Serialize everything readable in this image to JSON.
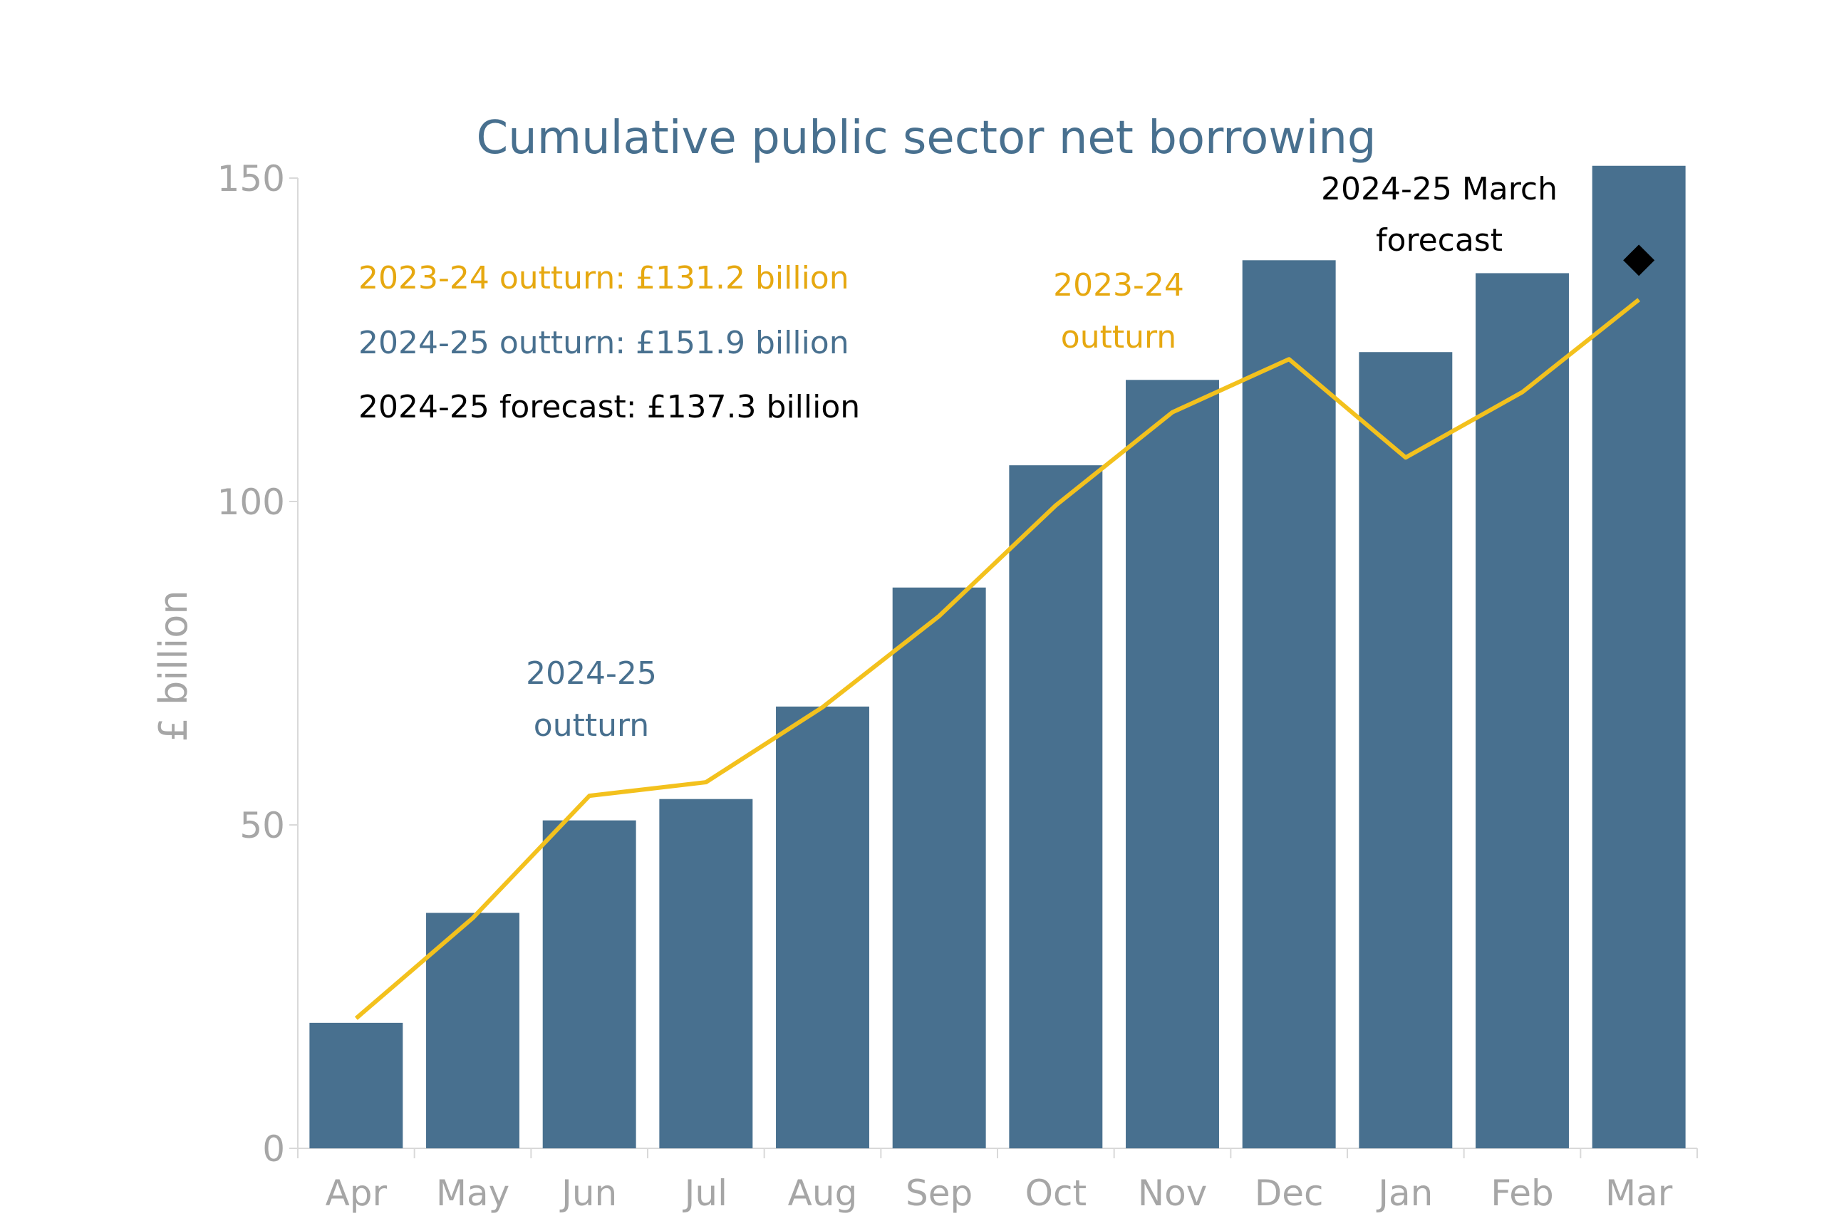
{
  "colors": {
    "bar": "#48708f",
    "line": "#f3c11d",
    "marker": "#000000",
    "title": "#48708f",
    "axis_text": "#a6a6a6",
    "orange_text": "#e6a810",
    "blue_text": "#48708f",
    "black_text": "#000000"
  },
  "chart_data": {
    "type": "bar",
    "title": "Cumulative public sector net borrowing",
    "xlabel": "",
    "ylabel": "£ billion",
    "ylim": [
      0,
      150
    ],
    "yticks": [
      "0",
      "50",
      "100",
      "150"
    ],
    "ytick_values": [
      0,
      50,
      100,
      150
    ],
    "categories": [
      "Apr",
      "May",
      "Jun",
      "Jul",
      "Aug",
      "Sep",
      "Oct",
      "Nov",
      "Dec",
      "Jan",
      "Feb",
      "Mar"
    ],
    "series": [
      {
        "name": "2024-25 outturn",
        "type": "bar",
        "values": [
          19.4,
          36.4,
          50.7,
          54.0,
          68.3,
          86.7,
          105.6,
          118.8,
          137.3,
          123.1,
          135.3,
          151.9
        ]
      },
      {
        "name": "2023-24 outturn",
        "type": "line",
        "values": [
          20.1,
          35.6,
          54.5,
          56.6,
          68.2,
          82.3,
          99.4,
          113.8,
          122.0,
          106.8,
          116.9,
          131.2
        ]
      },
      {
        "name": "2024-25 March forecast",
        "type": "marker",
        "category": "Mar",
        "value": 137.3
      }
    ],
    "annotations": {
      "bar_label": [
        "2024-25",
        "outturn"
      ],
      "line_label": [
        "2023-24",
        "outturn"
      ],
      "forecast_label": [
        "2024-25 March",
        "forecast"
      ]
    },
    "legend": {
      "placement": "top-left",
      "entries": [
        "2023-24 outturn: £131.2 billion",
        "2024-25 outturn: £151.9 billion",
        "2024-25 forecast: £137.3 billion"
      ]
    }
  }
}
